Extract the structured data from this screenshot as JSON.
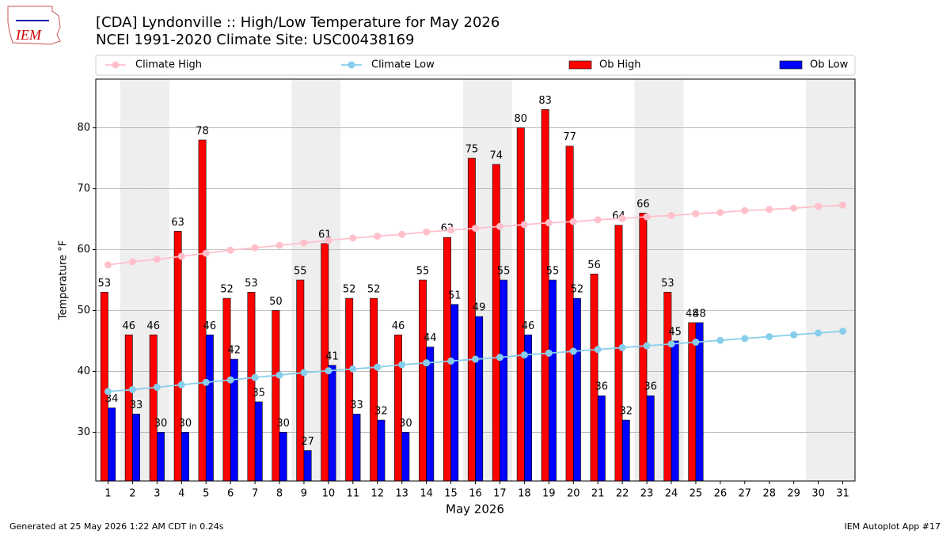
{
  "logo_text": "IEM",
  "chart_data": {
    "type": "bar_line",
    "title": "[CDA] Lyndonville :: High/Low Temperature for May 2026",
    "subtitle": "NCEI 1991-2020 Climate Site: USC00438169",
    "xlabel": "May 2026",
    "ylabel": "Temperature °F",
    "footer_left": "Generated at 25 May 2026 1:22 AM CDT in 0.24s",
    "footer_right": "IEM Autoplot App #17",
    "categories": [
      1,
      2,
      3,
      4,
      5,
      6,
      7,
      8,
      9,
      10,
      11,
      12,
      13,
      14,
      15,
      16,
      17,
      18,
      19,
      20,
      21,
      22,
      23,
      24,
      25,
      26,
      27,
      28,
      29,
      30,
      31
    ],
    "shaded_days": [
      2,
      3,
      9,
      10,
      16,
      17,
      23,
      24,
      30,
      31
    ],
    "series": [
      {
        "name": "Climate High",
        "kind": "line",
        "color": "#ffc0cb",
        "values": [
          57.5,
          58.0,
          58.4,
          58.9,
          59.4,
          59.9,
          60.3,
          60.7,
          61.1,
          61.5,
          61.9,
          62.2,
          62.5,
          62.9,
          63.2,
          63.5,
          63.8,
          64.1,
          64.4,
          64.6,
          64.9,
          65.1,
          65.4,
          65.6,
          65.9,
          66.1,
          66.4,
          66.6,
          66.8,
          67.1,
          67.3
        ]
      },
      {
        "name": "Climate Low",
        "kind": "line",
        "color": "#87ceeb",
        "values": [
          36.7,
          37.0,
          37.4,
          37.8,
          38.2,
          38.6,
          39.0,
          39.4,
          39.8,
          40.1,
          40.4,
          40.7,
          41.1,
          41.4,
          41.7,
          42.0,
          42.3,
          42.7,
          43.0,
          43.3,
          43.6,
          43.9,
          44.2,
          44.5,
          44.8,
          45.1,
          45.4,
          45.7,
          46.0,
          46.3,
          46.6
        ]
      },
      {
        "name": "Ob High",
        "kind": "bar",
        "color": "#ff0000",
        "values": [
          53,
          46,
          46,
          63,
          78,
          52,
          53,
          50,
          55,
          61,
          52,
          52,
          46,
          55,
          62,
          75,
          74,
          80,
          83,
          77,
          56,
          64,
          66,
          53,
          48,
          null,
          null,
          null,
          null,
          null,
          null
        ]
      },
      {
        "name": "Ob Low",
        "kind": "bar",
        "color": "#0000ff",
        "values": [
          34,
          33,
          30,
          30,
          46,
          42,
          35,
          30,
          27,
          41,
          33,
          32,
          30,
          44,
          51,
          49,
          55,
          46,
          55,
          52,
          36,
          32,
          36,
          45,
          48,
          null,
          null,
          null,
          null,
          null,
          null
        ]
      }
    ],
    "ylim": [
      22,
      88
    ],
    "yticks": [
      30,
      40,
      50,
      60,
      70,
      80
    ],
    "grid": true
  }
}
